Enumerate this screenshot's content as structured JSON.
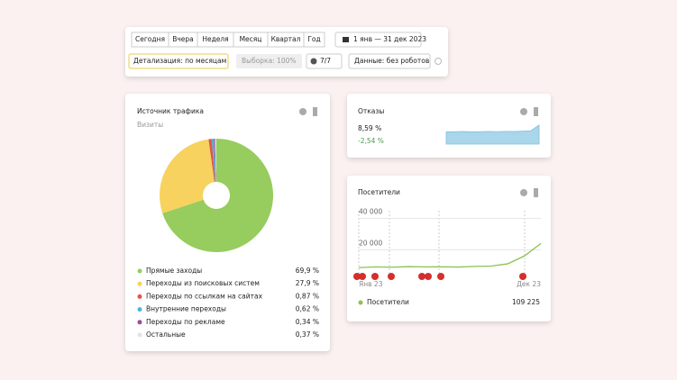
{
  "toolbar": {
    "periods": [
      "Сегодня",
      "Вчера",
      "Неделя",
      "Месяц",
      "Квартал",
      "Год"
    ],
    "date_range": "1 янв — 31 дек 2023",
    "detail": "Детализация: по месяцам",
    "sample": "Выборка: 100%",
    "segments": "7/7",
    "data_filter": "Данные: без роботов"
  },
  "chart_data": [
    {
      "type": "pie",
      "title": "Источник трафика",
      "subtitle": "Визиты",
      "categories": [
        "Прямые заходы",
        "Переходы из поисковых систем",
        "Переходы по ссылкам на сайтах",
        "Внутренние переходы",
        "Переходы по рекламе",
        "Остальные"
      ],
      "values": [
        69.9,
        27.9,
        0.87,
        0.62,
        0.34,
        0.37
      ],
      "value_labels": [
        "69,9 %",
        "27,9 %",
        "0,87 %",
        "0,62 %",
        "0,34 %",
        "0,37 %"
      ],
      "colors": [
        "#97cc5e",
        "#f7d25e",
        "#e5534b",
        "#4fb2d9",
        "#9a4f97",
        "#e3e3e3"
      ]
    },
    {
      "type": "area",
      "title": "Отказы",
      "value_text": "8,59 %",
      "change": "-2,54 %",
      "values": [
        7.4,
        7.5,
        7.6,
        7.4,
        7.5,
        7.7,
        7.5,
        7.7,
        7.6,
        7.8,
        8.0,
        11.5
      ],
      "ylim": [
        0,
        12
      ],
      "color": "#a9d6ea"
    },
    {
      "type": "line",
      "title": "Посетители",
      "categories": [
        "Янв 23",
        null,
        null,
        null,
        null,
        null,
        null,
        null,
        null,
        null,
        null,
        "Дек 23"
      ],
      "series": [
        {
          "name": "Посетители",
          "color": "#8cc152",
          "values": [
            8500,
            9000,
            8800,
            9200,
            9000,
            9100,
            8900,
            9300,
            9500,
            11000,
            16000,
            24000
          ]
        }
      ],
      "total": "109 225",
      "ylim": [
        0,
        45000
      ],
      "yticks": [
        {
          "value": 20000,
          "label": "20 000"
        },
        {
          "value": 40000,
          "label": "40 000"
        }
      ],
      "grid": true
    }
  ]
}
